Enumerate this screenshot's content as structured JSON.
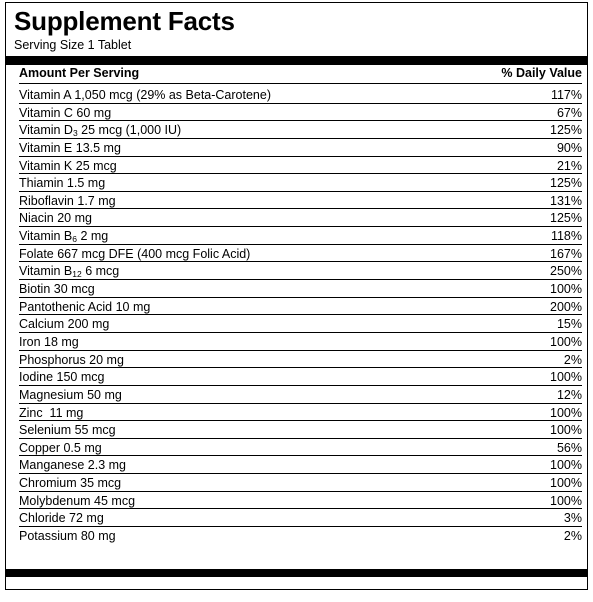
{
  "panel": {
    "title": "Supplement Facts",
    "serving_size": "Serving Size 1 Tablet",
    "header_amount": "Amount Per Serving",
    "header_dv": "% Daily Value"
  },
  "nutrients": [
    {
      "name": "Vitamin A 1,050 mcg (29% as Beta-Carotene)",
      "dv": "117%"
    },
    {
      "name": "Vitamin C 60 mg",
      "dv": "67%"
    },
    {
      "name_pre": "Vitamin D",
      "sub": "3",
      "name_post": " 25 mcg (1,000 IU)",
      "dv": "125%"
    },
    {
      "name": "Vitamin E 13.5 mg",
      "dv": "90%"
    },
    {
      "name": "Vitamin K 25 mcg",
      "dv": "21%"
    },
    {
      "name": "Thiamin 1.5 mg",
      "dv": "125%"
    },
    {
      "name": "Riboflavin 1.7 mg",
      "dv": "131%"
    },
    {
      "name": "Niacin 20 mg",
      "dv": "125%"
    },
    {
      "name_pre": "Vitamin B",
      "sub": "6",
      "name_post": " 2 mg",
      "dv": "118%"
    },
    {
      "name": "Folate 667 mcg DFE (400 mcg Folic Acid)",
      "dv": "167%"
    },
    {
      "name_pre": "Vitamin B",
      "sub": "12",
      "name_post": " 6 mcg",
      "dv": "250%"
    },
    {
      "name": "Biotin 30 mcg",
      "dv": "100%"
    },
    {
      "name": "Pantothenic Acid 10 mg",
      "dv": "200%"
    },
    {
      "name": "Calcium 200 mg",
      "dv": "15%"
    },
    {
      "name": "Iron 18 mg",
      "dv": "100%"
    },
    {
      "name": "Phosphorus 20 mg",
      "dv": "2%"
    },
    {
      "name": "Iodine 150 mcg",
      "dv": "100%"
    },
    {
      "name": "Magnesium 50 mg",
      "dv": "12%"
    },
    {
      "name": "Zinc  11 mg",
      "dv": "100%"
    },
    {
      "name": "Selenium 55 mcg",
      "dv": "100%"
    },
    {
      "name": "Copper 0.5 mg",
      "dv": "56%"
    },
    {
      "name": "Manganese 2.3 mg",
      "dv": "100%"
    },
    {
      "name": "Chromium 35 mcg",
      "dv": "100%"
    },
    {
      "name": "Molybdenum 45 mcg",
      "dv": "100%"
    },
    {
      "name": "Chloride 72 mg",
      "dv": "3%"
    },
    {
      "name": "Potassium 80 mg",
      "dv": "2%"
    }
  ]
}
